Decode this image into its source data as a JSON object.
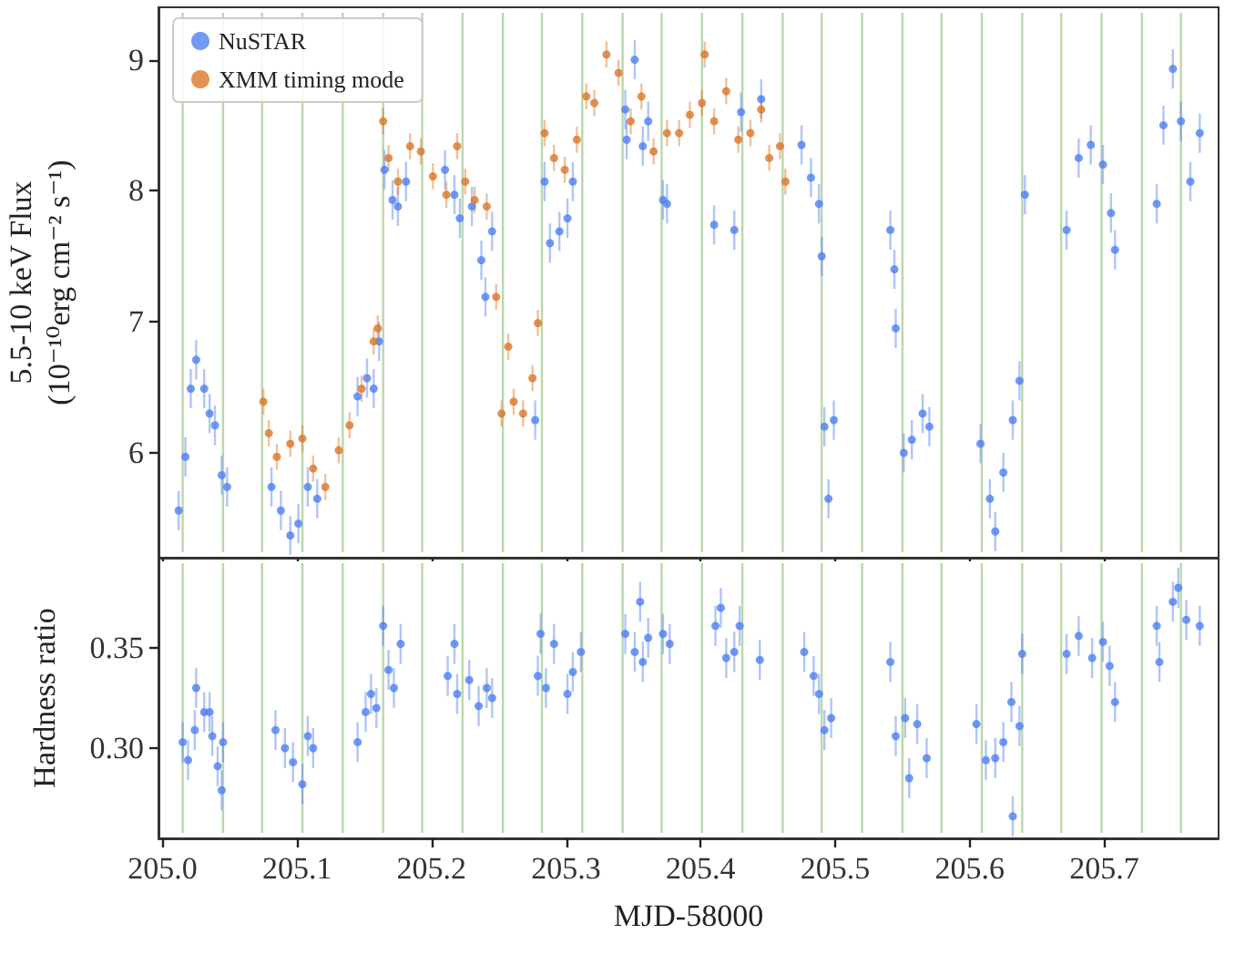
{
  "chart_data": [
    {
      "type": "scatter",
      "ylabel": "5.5-10 keV Flux\n(10⁻¹⁰erg cm⁻² s⁻¹)",
      "xlim": [
        204.997,
        205.785
      ],
      "ylim": [
        5.2,
        9.4
      ],
      "xticks": [
        205,
        205.1,
        205.2,
        205.3,
        205.4,
        205.5,
        205.6,
        205.7
      ],
      "yticks": [
        6,
        7,
        8,
        9
      ],
      "tick_labels": "y",
      "legend": "top left",
      "marker": "circle",
      "grid": false,
      "series": [
        {
          "name": "NuSTAR",
          "color": "#4f7ff0",
          "x": [
            205.012,
            205.017,
            205.021,
            205.025,
            205.031,
            205.035,
            205.039,
            205.044,
            205.048,
            205.081,
            205.088,
            205.095,
            205.101,
            205.108,
            205.115,
            205.145,
            205.152,
            205.157,
            205.161,
            205.165,
            205.171,
            205.175,
            205.181,
            205.21,
            205.217,
            205.221,
            205.23,
            205.237,
            205.24,
            205.245,
            205.277,
            205.284,
            205.288,
            205.295,
            205.301,
            205.305,
            205.344,
            205.345,
            205.351,
            205.357,
            205.361,
            205.372,
            205.375,
            205.41,
            205.425,
            205.43,
            205.445,
            205.475,
            205.482,
            205.488,
            205.49,
            205.492,
            205.495,
            205.499,
            205.541,
            205.544,
            205.545,
            205.551,
            205.557,
            205.565,
            205.57,
            205.608,
            205.615,
            205.619,
            205.625,
            205.632,
            205.637,
            205.641,
            205.672,
            205.681,
            205.69,
            205.699,
            205.705,
            205.708,
            205.739,
            205.744,
            205.751,
            205.757,
            205.764,
            205.771
          ],
          "values": [
            5.56,
            5.97,
            6.49,
            6.71,
            6.49,
            6.3,
            6.21,
            5.83,
            5.74,
            5.74,
            5.56,
            5.37,
            5.46,
            5.74,
            5.65,
            6.43,
            6.57,
            6.49,
            6.85,
            8.16,
            7.93,
            7.88,
            8.07,
            8.16,
            7.97,
            7.79,
            7.88,
            7.47,
            7.19,
            7.69,
            6.25,
            8.07,
            7.6,
            7.69,
            7.79,
            8.07,
            8.62,
            8.39,
            9.0,
            8.34,
            8.53,
            7.93,
            7.9,
            7.74,
            7.7,
            8.6,
            8.7,
            8.35,
            8.1,
            7.9,
            7.5,
            6.2,
            5.65,
            6.25,
            7.7,
            7.4,
            6.95,
            6.0,
            6.1,
            6.3,
            6.2,
            6.07,
            5.65,
            5.4,
            5.85,
            6.25,
            6.55,
            7.97,
            7.7,
            8.25,
            8.35,
            8.2,
            7.83,
            7.55,
            7.9,
            8.5,
            8.93,
            8.53,
            8.07,
            8.44
          ],
          "errors": [
            0.15,
            0.15,
            0.15,
            0.15,
            0.15,
            0.15,
            0.15,
            0.15,
            0.15,
            0.15,
            0.15,
            0.15,
            0.15,
            0.15,
            0.15,
            0.15,
            0.15,
            0.15,
            0.15,
            0.15,
            0.15,
            0.15,
            0.15,
            0.15,
            0.15,
            0.15,
            0.15,
            0.15,
            0.15,
            0.15,
            0.15,
            0.15,
            0.15,
            0.15,
            0.15,
            0.15,
            0.15,
            0.15,
            0.15,
            0.15,
            0.15,
            0.15,
            0.15,
            0.15,
            0.15,
            0.15,
            0.15,
            0.15,
            0.15,
            0.15,
            0.15,
            0.15,
            0.15,
            0.15,
            0.15,
            0.15,
            0.15,
            0.15,
            0.15,
            0.15,
            0.15,
            0.15,
            0.15,
            0.15,
            0.15,
            0.15,
            0.15,
            0.15,
            0.15,
            0.15,
            0.15,
            0.15,
            0.15,
            0.15,
            0.15,
            0.15,
            0.15,
            0.15,
            0.15,
            0.15
          ]
        },
        {
          "name": "XMM timing mode",
          "color": "#d9772b",
          "x": [
            205.075,
            205.079,
            205.085,
            205.095,
            205.104,
            205.112,
            205.121,
            205.131,
            205.139,
            205.148,
            205.157,
            205.16,
            205.164,
            205.168,
            205.175,
            205.184,
            205.192,
            205.201,
            205.211,
            205.219,
            205.225,
            205.232,
            205.241,
            205.248,
            205.252,
            205.257,
            205.261,
            205.268,
            205.275,
            205.279,
            205.284,
            205.291,
            205.299,
            205.308,
            205.315,
            205.321,
            205.33,
            205.339,
            205.348,
            205.356,
            205.365,
            205.375,
            205.384,
            205.392,
            205.401,
            205.403,
            205.41,
            205.419,
            205.428,
            205.437,
            205.445,
            205.451,
            205.459,
            205.463
          ],
          "values": [
            6.39,
            6.15,
            5.97,
            6.07,
            6.11,
            5.88,
            5.74,
            6.02,
            6.21,
            6.49,
            6.85,
            6.95,
            8.53,
            8.25,
            8.07,
            8.34,
            8.3,
            8.11,
            7.97,
            8.34,
            8.07,
            7.93,
            7.88,
            7.19,
            6.3,
            6.81,
            6.39,
            6.3,
            6.57,
            6.99,
            8.44,
            8.25,
            8.16,
            8.39,
            8.72,
            8.67,
            9.04,
            8.9,
            8.53,
            8.72,
            8.3,
            8.44,
            8.44,
            8.58,
            8.67,
            9.04,
            8.53,
            8.76,
            8.39,
            8.44,
            8.62,
            8.25,
            8.34,
            8.07
          ],
          "errors": [
            0.1,
            0.1,
            0.1,
            0.1,
            0.1,
            0.1,
            0.1,
            0.1,
            0.1,
            0.1,
            0.1,
            0.1,
            0.1,
            0.1,
            0.1,
            0.1,
            0.1,
            0.1,
            0.1,
            0.1,
            0.1,
            0.1,
            0.1,
            0.1,
            0.1,
            0.1,
            0.1,
            0.1,
            0.1,
            0.1,
            0.1,
            0.1,
            0.1,
            0.1,
            0.1,
            0.1,
            0.1,
            0.1,
            0.1,
            0.1,
            0.1,
            0.1,
            0.1,
            0.1,
            0.1,
            0.1,
            0.1,
            0.1,
            0.1,
            0.1,
            0.1,
            0.1,
            0.1,
            0.1
          ]
        }
      ],
      "ref_lines": [
        {
          "axis": "x",
          "value": 205.015,
          "color": "#b9d8aa"
        },
        {
          "axis": "x",
          "value": 205.045,
          "color": "#b9d8aa"
        },
        {
          "axis": "x",
          "value": 205.074,
          "color": "#b9d8aa"
        },
        {
          "axis": "x",
          "value": 205.104,
          "color": "#b9d8aa"
        },
        {
          "axis": "x",
          "value": 205.134,
          "color": "#b9d8aa"
        },
        {
          "axis": "x",
          "value": 205.164,
          "color": "#b9d8aa"
        },
        {
          "axis": "x",
          "value": 205.193,
          "color": "#b9d8aa"
        },
        {
          "axis": "x",
          "value": 205.223,
          "color": "#b9d8aa"
        },
        {
          "axis": "x",
          "value": 205.253,
          "color": "#b9d8aa"
        },
        {
          "axis": "x",
          "value": 205.282,
          "color": "#b9d8aa"
        },
        {
          "axis": "x",
          "value": 205.312,
          "color": "#b9d8aa"
        },
        {
          "axis": "x",
          "value": 205.342,
          "color": "#b9d8aa"
        },
        {
          "axis": "x",
          "value": 205.371,
          "color": "#b9d8aa"
        },
        {
          "axis": "x",
          "value": 205.401,
          "color": "#b9d8aa"
        },
        {
          "axis": "x",
          "value": 205.431,
          "color": "#b9d8aa"
        },
        {
          "axis": "x",
          "value": 205.461,
          "color": "#b9d8aa"
        },
        {
          "axis": "x",
          "value": 205.49,
          "color": "#b9d8aa"
        },
        {
          "axis": "x",
          "value": 205.52,
          "color": "#b9d8aa"
        },
        {
          "axis": "x",
          "value": 205.55,
          "color": "#b9d8aa"
        },
        {
          "axis": "x",
          "value": 205.579,
          "color": "#b9d8aa"
        },
        {
          "axis": "x",
          "value": 205.609,
          "color": "#b9d8aa"
        },
        {
          "axis": "x",
          "value": 205.639,
          "color": "#b9d8aa"
        },
        {
          "axis": "x",
          "value": 205.668,
          "color": "#b9d8aa"
        },
        {
          "axis": "x",
          "value": 205.698,
          "color": "#b9d8aa"
        },
        {
          "axis": "x",
          "value": 205.728,
          "color": "#b9d8aa"
        },
        {
          "axis": "x",
          "value": 205.757,
          "color": "#b9d8aa"
        }
      ]
    },
    {
      "type": "scatter",
      "xlabel": "MJD-58000",
      "ylabel": "Hardness ratio",
      "xlim": [
        204.997,
        205.785
      ],
      "ylim": [
        0.255,
        0.395
      ],
      "xticks": [
        {
          "value": 205,
          "label": "205.0"
        },
        205.1,
        205.2,
        205.3,
        205.4,
        205.5,
        205.6,
        205.7
      ],
      "yticks": [
        {
          "value": 0.3,
          "label": "0.30"
        },
        0.35
      ],
      "marker": "circle",
      "grid": false,
      "series": [
        {
          "color": "#4f7ff0",
          "x": [
            205.015,
            205.019,
            205.024,
            205.025,
            205.031,
            205.035,
            205.037,
            205.041,
            205.044,
            205.045,
            205.084,
            205.091,
            205.097,
            205.104,
            205.108,
            205.112,
            205.145,
            205.151,
            205.155,
            205.159,
            205.164,
            205.168,
            205.172,
            205.177,
            205.212,
            205.217,
            205.219,
            205.228,
            205.235,
            205.241,
            205.245,
            205.279,
            205.281,
            205.285,
            205.291,
            205.301,
            205.305,
            205.311,
            205.344,
            205.351,
            205.355,
            205.357,
            205.361,
            205.372,
            205.377,
            205.411,
            205.415,
            205.419,
            205.425,
            205.429,
            205.444,
            205.477,
            205.484,
            205.488,
            205.492,
            205.497,
            205.541,
            205.545,
            205.552,
            205.555,
            205.561,
            205.568,
            205.605,
            205.612,
            205.619,
            205.625,
            205.631,
            205.632,
            205.637,
            205.639,
            205.672,
            205.681,
            205.691,
            205.699,
            205.704,
            205.708,
            205.739,
            205.741,
            205.751,
            205.755,
            205.761,
            205.771
          ],
          "values": [
            0.303,
            0.294,
            0.309,
            0.33,
            0.318,
            0.318,
            0.306,
            0.291,
            0.279,
            0.303,
            0.309,
            0.3,
            0.293,
            0.282,
            0.306,
            0.3,
            0.303,
            0.318,
            0.327,
            0.32,
            0.361,
            0.339,
            0.33,
            0.352,
            0.336,
            0.352,
            0.327,
            0.334,
            0.321,
            0.33,
            0.325,
            0.336,
            0.357,
            0.33,
            0.352,
            0.327,
            0.338,
            0.348,
            0.357,
            0.348,
            0.373,
            0.343,
            0.355,
            0.357,
            0.352,
            0.361,
            0.37,
            0.345,
            0.348,
            0.361,
            0.344,
            0.348,
            0.336,
            0.327,
            0.309,
            0.315,
            0.343,
            0.306,
            0.315,
            0.285,
            0.312,
            0.295,
            0.312,
            0.294,
            0.295,
            0.303,
            0.323,
            0.266,
            0.311,
            0.347,
            0.347,
            0.356,
            0.345,
            0.353,
            0.341,
            0.323,
            0.361,
            0.343,
            0.373,
            0.38,
            0.364,
            0.361
          ],
          "errors": [
            0.01,
            0.01,
            0.01,
            0.01,
            0.01,
            0.01,
            0.01,
            0.01,
            0.01,
            0.01,
            0.01,
            0.01,
            0.01,
            0.01,
            0.01,
            0.01,
            0.01,
            0.01,
            0.01,
            0.01,
            0.01,
            0.01,
            0.01,
            0.01,
            0.01,
            0.01,
            0.01,
            0.01,
            0.01,
            0.01,
            0.01,
            0.01,
            0.01,
            0.01,
            0.01,
            0.01,
            0.01,
            0.01,
            0.01,
            0.01,
            0.01,
            0.01,
            0.01,
            0.01,
            0.01,
            0.01,
            0.01,
            0.01,
            0.01,
            0.01,
            0.01,
            0.01,
            0.01,
            0.01,
            0.01,
            0.01,
            0.01,
            0.01,
            0.01,
            0.01,
            0.01,
            0.01,
            0.01,
            0.01,
            0.01,
            0.01,
            0.01,
            0.01,
            0.01,
            0.01,
            0.01,
            0.01,
            0.01,
            0.01,
            0.01,
            0.01,
            0.01,
            0.01,
            0.01,
            0.01,
            0.01,
            0.01
          ]
        }
      ],
      "ref_lines": [
        {
          "axis": "x",
          "value": 205.015,
          "color": "#b9d8aa"
        },
        {
          "axis": "x",
          "value": 205.045,
          "color": "#b9d8aa"
        },
        {
          "axis": "x",
          "value": 205.074,
          "color": "#b9d8aa"
        },
        {
          "axis": "x",
          "value": 205.104,
          "color": "#b9d8aa"
        },
        {
          "axis": "x",
          "value": 205.134,
          "color": "#b9d8aa"
        },
        {
          "axis": "x",
          "value": 205.164,
          "color": "#b9d8aa"
        },
        {
          "axis": "x",
          "value": 205.193,
          "color": "#b9d8aa"
        },
        {
          "axis": "x",
          "value": 205.223,
          "color": "#b9d8aa"
        },
        {
          "axis": "x",
          "value": 205.253,
          "color": "#b9d8aa"
        },
        {
          "axis": "x",
          "value": 205.282,
          "color": "#b9d8aa"
        },
        {
          "axis": "x",
          "value": 205.312,
          "color": "#b9d8aa"
        },
        {
          "axis": "x",
          "value": 205.342,
          "color": "#b9d8aa"
        },
        {
          "axis": "x",
          "value": 205.371,
          "color": "#b9d8aa"
        },
        {
          "axis": "x",
          "value": 205.401,
          "color": "#b9d8aa"
        },
        {
          "axis": "x",
          "value": 205.431,
          "color": "#b9d8aa"
        },
        {
          "axis": "x",
          "value": 205.461,
          "color": "#b9d8aa"
        },
        {
          "axis": "x",
          "value": 205.49,
          "color": "#b9d8aa"
        },
        {
          "axis": "x",
          "value": 205.52,
          "color": "#b9d8aa"
        },
        {
          "axis": "x",
          "value": 205.55,
          "color": "#b9d8aa"
        },
        {
          "axis": "x",
          "value": 205.579,
          "color": "#b9d8aa"
        },
        {
          "axis": "x",
          "value": 205.609,
          "color": "#b9d8aa"
        },
        {
          "axis": "x",
          "value": 205.639,
          "color": "#b9d8aa"
        },
        {
          "axis": "x",
          "value": 205.668,
          "color": "#b9d8aa"
        },
        {
          "axis": "x",
          "value": 205.698,
          "color": "#b9d8aa"
        },
        {
          "axis": "x",
          "value": 205.728,
          "color": "#b9d8aa"
        },
        {
          "axis": "x",
          "value": 205.757,
          "color": "#b9d8aa"
        }
      ]
    }
  ]
}
